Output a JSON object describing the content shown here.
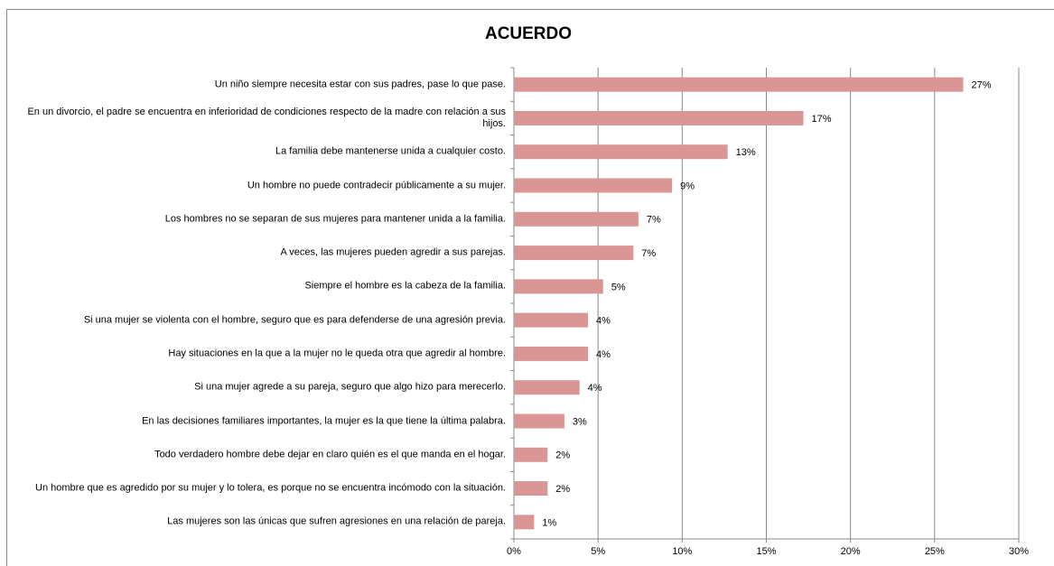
{
  "chart_data": {
    "type": "barh",
    "title": "ACUERDO",
    "categories": [
      "Un niño siempre necesita estar con sus padres, pase lo que pase.",
      "En un divorcio, el padre se encuentra en inferioridad de condiciones respecto de la madre con relación a sus hijos.",
      "La familia debe mantenerse unida a cualquier costo.",
      "Un hombre no puede contradecir públicamente a su mujer.",
      "Los hombres no se separan de sus mujeres para mantener unida a la familia.",
      "A veces, las mujeres pueden agredir a sus parejas.",
      "Siempre el hombre es la cabeza de la familia.",
      "Si una mujer se violenta con el hombre, seguro que es para defenderse de una agresión previa.",
      "Hay situaciones en la que a la mujer no le queda otra que agredir al hombre.",
      "Si una mujer agrede a su pareja, seguro que algo hizo para merecerlo.",
      "En las decisiones familiares importantes, la mujer es la que tiene la última palabra.",
      "Todo verdadero hombre debe dejar en claro quién es el que manda en el hogar.",
      "Un hombre que es agredido por su mujer y lo tolera, es porque no se encuentra incómodo con la situación.",
      "Las mujeres son las únicas que sufren agresiones en una relación de pareja."
    ],
    "values": [
      26.7,
      17.2,
      12.7,
      9.4,
      7.4,
      7.1,
      5.3,
      4.4,
      4.4,
      3.9,
      3.0,
      2.0,
      2.0,
      1.2
    ],
    "value_labels": [
      "27%",
      "17%",
      "13%",
      "9%",
      "7%",
      "7%",
      "5%",
      "4%",
      "4%",
      "4%",
      "3%",
      "2%",
      "2%",
      "1%"
    ],
    "color": "#d99694",
    "xlim": [
      0,
      30
    ],
    "xticks": [
      {
        "value": 0,
        "label": "0%"
      },
      {
        "value": 5,
        "label": "5%"
      },
      {
        "value": 10,
        "label": "10%"
      },
      {
        "value": 15,
        "label": "15%"
      },
      {
        "value": 20,
        "label": "20%"
      },
      {
        "value": 25,
        "label": "25%"
      },
      {
        "value": 30,
        "label": "30%"
      }
    ],
    "grid": true
  }
}
